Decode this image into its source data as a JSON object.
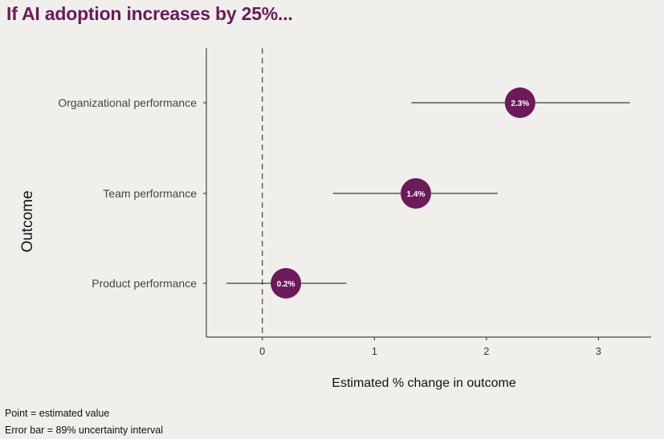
{
  "title": "If AI adoption increases by 25%...",
  "chart_data": {
    "type": "scatter",
    "subtype": "forest-plot",
    "xlabel": "Estimated % change in outcome",
    "ylabel": "Outcome",
    "xlim": [
      -0.5,
      3.47
    ],
    "xticks": [
      0,
      1,
      2,
      3
    ],
    "reference_line_x": 0,
    "categories": [
      "Organizational performance",
      "Team performance",
      "Product performance"
    ],
    "points": [
      {
        "label": "Organizational performance",
        "estimate": 2.3,
        "lower": 1.33,
        "upper": 3.28,
        "data_label": "2.3%"
      },
      {
        "label": "Team performance",
        "estimate": 1.37,
        "lower": 0.63,
        "upper": 2.1,
        "data_label": "1.4%"
      },
      {
        "label": "Product performance",
        "estimate": 0.21,
        "lower": -0.32,
        "upper": 0.75,
        "data_label": "0.2%"
      }
    ],
    "point_color": "#6b1a5a"
  },
  "footnotes": {
    "line1": "Point = estimated value",
    "line2": "Error bar = 89% uncertainty interval"
  }
}
